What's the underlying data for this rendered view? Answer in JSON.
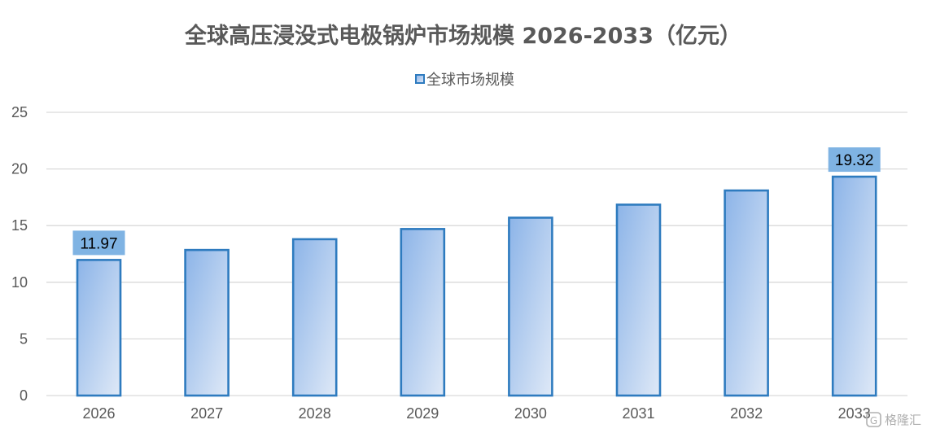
{
  "chart_data": {
    "type": "bar",
    "title": "全球高压浸没式电极锅炉市场规模 2026-2033（亿元）",
    "xlabel": "",
    "ylabel": "",
    "categories": [
      "2026",
      "2027",
      "2028",
      "2029",
      "2030",
      "2031",
      "2032",
      "2033"
    ],
    "series": [
      {
        "name": "全球市场规模",
        "values": [
          11.97,
          12.85,
          13.8,
          14.7,
          15.7,
          16.85,
          18.1,
          19.32
        ]
      }
    ],
    "data_labels": [
      {
        "category": "2026",
        "text": "11.97"
      },
      {
        "category": "2033",
        "text": "19.32"
      }
    ],
    "ylim": [
      0,
      25
    ],
    "yticks": [
      "0",
      "5",
      "10",
      "15",
      "20",
      "25"
    ],
    "grid": true,
    "legend_position": "top-center",
    "colors": {
      "bar_fill_start": "#8cb4e8",
      "bar_fill_end": "#dfe9f7",
      "bar_stroke": "#2e7bbf",
      "label_background": "#7fb3e3",
      "title_color": "#595959",
      "axis_text_color": "#595959",
      "gridline_color": "#d9d9d9"
    }
  },
  "watermark": {
    "text": "格隆汇",
    "icon": "brand-logo-icon"
  }
}
